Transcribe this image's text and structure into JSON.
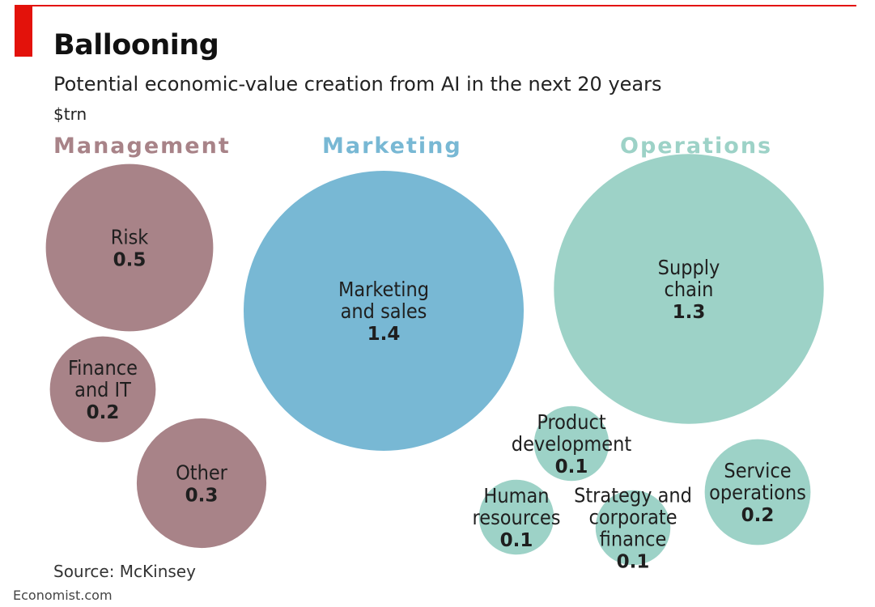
{
  "chart_data": {
    "type": "bubble",
    "title": "Ballooning",
    "subtitle": "Potential economic-value creation from AI in the next 20 years",
    "unit": "$trn",
    "groups": [
      {
        "name": "Management",
        "color": "#a88388"
      },
      {
        "name": "Marketing",
        "color": "#78b8d4"
      },
      {
        "name": "Operations",
        "color": "#9dd2c7"
      }
    ],
    "bubbles": [
      {
        "group": "Management",
        "label": [
          "Risk"
        ],
        "value": 0.5
      },
      {
        "group": "Management",
        "label": [
          "Finance",
          "and IT"
        ],
        "value": 0.2
      },
      {
        "group": "Management",
        "label": [
          "Other"
        ],
        "value": 0.3
      },
      {
        "group": "Marketing",
        "label": [
          "Marketing",
          "and sales"
        ],
        "value": 1.4
      },
      {
        "group": "Operations",
        "label": [
          "Supply",
          "chain"
        ],
        "value": 1.3
      },
      {
        "group": "Operations",
        "label": [
          "Product",
          "development"
        ],
        "value": 0.1
      },
      {
        "group": "Operations",
        "label": [
          "Service",
          "operations"
        ],
        "value": 0.2
      },
      {
        "group": "Operations",
        "label": [
          "Human",
          "resources"
        ],
        "value": 0.1
      },
      {
        "group": "Operations",
        "label": [
          "Strategy and",
          "corporate",
          "finance"
        ],
        "value": 0.1
      }
    ]
  },
  "source": "Source: McKinsey",
  "footer": "Economist.com"
}
